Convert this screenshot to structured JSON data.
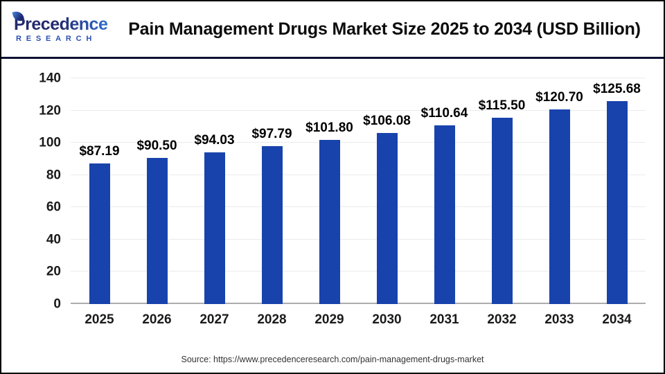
{
  "page": {
    "logo": {
      "brand": "Precedence",
      "sub": "RESEARCH"
    },
    "title": "Pain Management Drugs Market Size 2025 to 2034 (USD Billion)",
    "source": "Source: https://www.precedenceresearch.com/pain-management-drugs-market"
  },
  "colors": {
    "bar": "#1843AC",
    "logo_navy": "#232A6E",
    "logo_blue": "#2F66C8",
    "divider": "#0D1233",
    "gridline": "#EBEBEB",
    "axis_line": "#ADADAD"
  },
  "chart_data": {
    "type": "bar",
    "title": "Pain Management Drugs Market Size 2025 to 2034 (USD Billion)",
    "categories": [
      "2025",
      "2026",
      "2027",
      "2028",
      "2029",
      "2030",
      "2031",
      "2032",
      "2033",
      "2034"
    ],
    "values": [
      87.19,
      90.5,
      94.03,
      97.79,
      101.8,
      106.08,
      110.64,
      115.5,
      120.7,
      125.68
    ],
    "value_labels": [
      "$87.19",
      "$90.50",
      "$94.03",
      "$97.79",
      "$101.80",
      "$106.08",
      "$110.64",
      "$115.50",
      "$120.70",
      "$125.68"
    ],
    "unit": "USD Billion",
    "xlabel": "",
    "ylabel": "",
    "ylim": [
      0,
      140
    ],
    "yticks": [
      0,
      20,
      40,
      60,
      80,
      100,
      120,
      140
    ],
    "grid": true,
    "legend": false
  }
}
